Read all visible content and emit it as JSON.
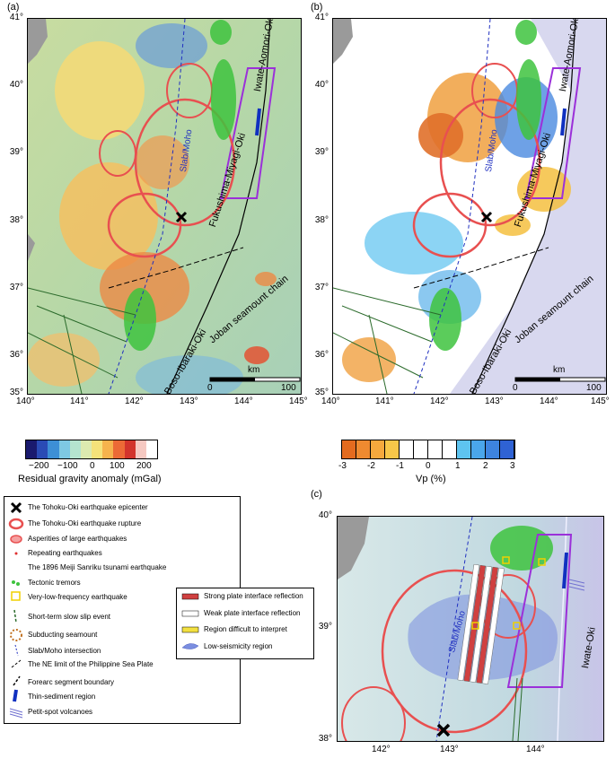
{
  "panels": {
    "a": {
      "label": "(a)"
    },
    "b": {
      "label": "(b)"
    },
    "c": {
      "label": "(c)"
    }
  },
  "axes_ab": {
    "x_ticks": [
      "140°",
      "141°",
      "142°",
      "143°",
      "144°",
      "145°"
    ],
    "y_ticks": [
      "41°",
      "40°",
      "39°",
      "38°",
      "37°",
      "36°",
      "35°"
    ]
  },
  "axes_c": {
    "x_ticks": [
      "142°",
      "143°",
      "144°"
    ],
    "y_ticks": [
      "40°",
      "39°",
      "38°"
    ]
  },
  "map_labels": {
    "iwate_aomori": "Iwate-Aomori-Oki",
    "fukushima_miyagi": "Fukushima-Miyagi-Oki",
    "joban": "Joban seamount chain",
    "boso_ibaraki": "Boso-Ibaraki-Oki",
    "slab_moho": "Slab/Moho",
    "iwate_oki": "Iwate-Oki",
    "scale_unit": "km",
    "scale_0": "0",
    "scale_100": "100"
  },
  "colorbar_a": {
    "title": "Residual gravity anomaly (mGal)",
    "ticks": [
      "−200",
      "−100",
      "0",
      "100",
      "200"
    ],
    "colors": [
      "#1a1a6e",
      "#2a4bb5",
      "#3d8fd6",
      "#7ec8e3",
      "#b5e4cf",
      "#dceab0",
      "#f5e27a",
      "#f6b34d",
      "#ec6a36",
      "#d2342c",
      "#f6c9c2",
      "#ffffff"
    ]
  },
  "colorbar_b": {
    "title": "Vp (%)",
    "ticks": [
      "-3",
      "-2",
      "-1",
      "0",
      "1",
      "2",
      "3"
    ],
    "colors": [
      "#e46b1f",
      "#ef8a30",
      "#f5a93d",
      "#f7c749",
      "#ffffff",
      "#ffffff",
      "#ffffff",
      "#ffffff",
      "#5ec4f0",
      "#4aa6ea",
      "#3d84df",
      "#2f62d4"
    ]
  },
  "legend": {
    "items": [
      {
        "icon": "epicenter-cross-icon",
        "label": "The Tohoku-Oki earthquake epicenter"
      },
      {
        "icon": "rupture-contour-icon",
        "label": "The Tohoku-Oki earthquake rupture"
      },
      {
        "icon": "asperity-contour-icon",
        "label": "Asperities of large earthquakes"
      },
      {
        "icon": "repeating-dot-icon",
        "label": "Repeating earthquakes"
      },
      {
        "icon": "meiji-box-icon",
        "label": "The 1896 Meiji Sanriku tsunami earthquake"
      },
      {
        "icon": "tremor-dot-icon",
        "label": "Tectonic tremors"
      },
      {
        "icon": "vlfe-square-icon",
        "label": "Very-low-frequency earthquake"
      },
      {
        "icon": "slow-slip-line-icon",
        "label": "Short-term slow slip event"
      },
      {
        "icon": "seamount-circle-icon",
        "label": "Subducting seamount"
      },
      {
        "icon": "slab-moho-line-icon",
        "label": "Slab/Moho intersection"
      },
      {
        "icon": "ne-limit-line-icon",
        "label": "The NE limit of the Philippine Sea Plate"
      },
      {
        "icon": "forearc-boundary-icon",
        "label": "Forearc segment boundary"
      },
      {
        "icon": "thin-sediment-icon",
        "label": "Thin-sediment region"
      },
      {
        "icon": "petit-spot-icon",
        "label": "Petit-spot volcanoes"
      }
    ]
  },
  "legend_c": {
    "items": [
      {
        "icon": "strong-reflection-icon",
        "label": "Strong plate interface reflection"
      },
      {
        "icon": "weak-reflection-icon",
        "label": "Weak plate interface reflection"
      },
      {
        "icon": "difficult-region-icon",
        "label": "Region difficult to interpret"
      },
      {
        "icon": "low-seismicity-icon",
        "label": "Low-seismicity region"
      }
    ]
  }
}
